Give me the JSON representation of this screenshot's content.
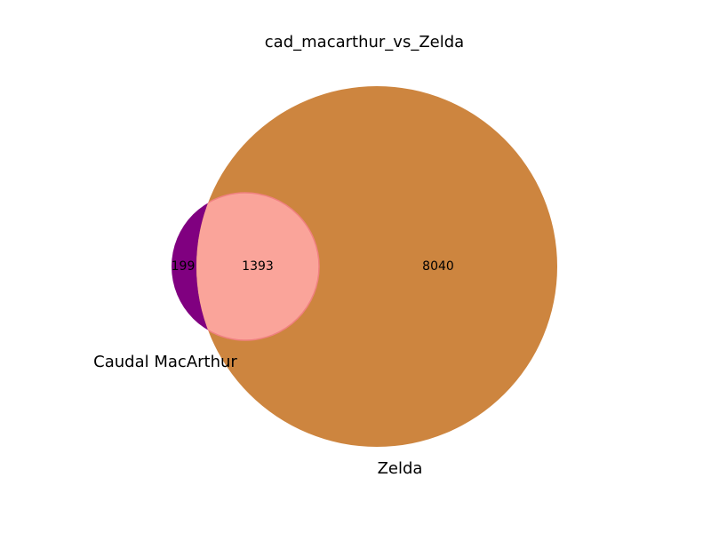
{
  "chart_data": {
    "type": "venn",
    "title": "cad_macarthur_vs_Zelda",
    "sets": [
      {
        "name": "Caudal MacArthur",
        "only_count": "199",
        "color": "#800080"
      },
      {
        "name": "Zelda",
        "only_count": "8040",
        "color": "#cd853f"
      }
    ],
    "intersection": {
      "count": "1393",
      "color": "#faa49a"
    }
  }
}
